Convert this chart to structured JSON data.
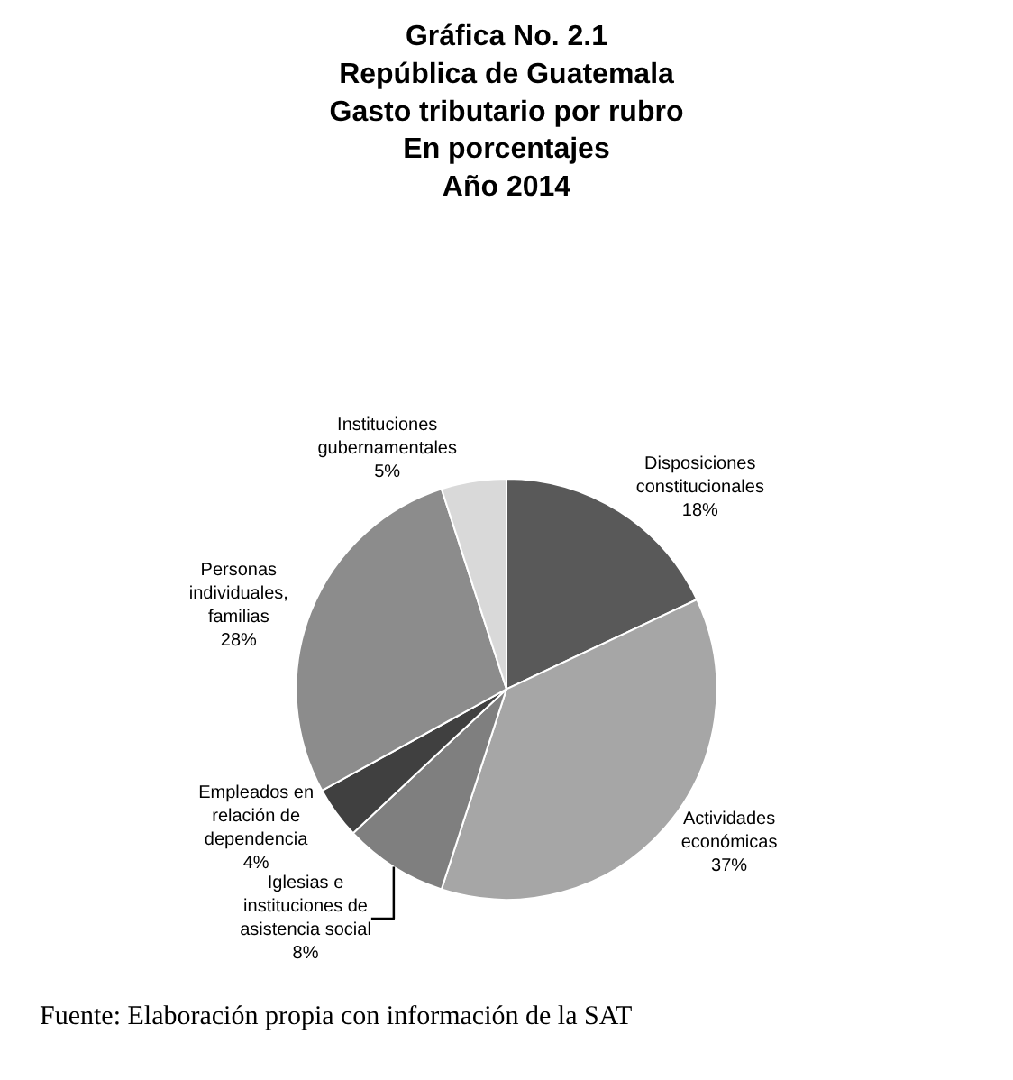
{
  "chart_data": {
    "type": "pie",
    "title": "Gráfica No. 2.1\nRepública de Guatemala\nGasto tributario por rubro\nEn porcentajes\nAño 2014",
    "categories": [
      "Disposiciones\nconstitucionales",
      "Actividades\neconómicas",
      "Iglesias e\ninstituciones de\nasistencia social",
      "Empleados en\nrelación de\ndependencia",
      "Personas\nindividuales,\nfamilias",
      "Instituciones\ngubernamentales"
    ],
    "values": [
      18,
      37,
      8,
      4,
      28,
      5
    ],
    "value_labels": [
      "18%",
      "37%",
      "8%",
      "4%",
      "28%",
      "5%"
    ],
    "colors": [
      "#595959",
      "#a6a6a6",
      "#7f7f7f",
      "#404040",
      "#8c8c8c",
      "#d9d9d9"
    ],
    "annotations": [
      "Fuente: Elaboración propia con información de la SAT"
    ],
    "legend": false
  }
}
